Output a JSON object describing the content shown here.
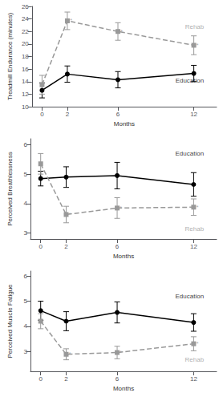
{
  "chart_data": [
    {
      "type": "line",
      "xlabel": "Months",
      "ylabel": "Treadmill Endurance (minutes)",
      "x": [
        0,
        2,
        6,
        12
      ],
      "xlim": [
        -0.8,
        13.8
      ],
      "xticks": [
        0,
        2,
        6,
        12
      ],
      "ylim": [
        10,
        26
      ],
      "yticks": [
        10,
        12,
        14,
        16,
        18,
        20,
        22,
        24,
        26
      ],
      "grid": false,
      "series": [
        {
          "name": "Education",
          "color": "#000000",
          "marker": "circle",
          "line_style": "solid",
          "values": [
            12.6,
            15.2,
            14.3,
            15.3
          ],
          "errors": [
            1.2,
            1.3,
            1.3,
            1.3
          ]
        },
        {
          "name": "Rehab",
          "color": "#999999",
          "marker": "square",
          "line_style": "dashed",
          "values": [
            13.5,
            23.7,
            22.0,
            19.8
          ],
          "errors": [
            1.5,
            1.4,
            1.4,
            1.5
          ]
        }
      ],
      "annotations": [
        {
          "text": "*",
          "x": 2,
          "y": 23.7,
          "color": "#999999",
          "align": "left"
        },
        {
          "text": "*",
          "x": 6,
          "y": 22.0,
          "color": "#999999",
          "align": "left"
        },
        {
          "text": "*",
          "x": 12,
          "y": 19.8,
          "color": "#999999",
          "align": "left"
        },
        {
          "text": "Education",
          "x": 12.8,
          "y": 14.2,
          "color": "#000000",
          "align": "right"
        },
        {
          "text": "Rehab",
          "x": 12.8,
          "y": 22.8,
          "color": "#999999",
          "align": "right"
        }
      ]
    },
    {
      "type": "line",
      "xlabel": "Months",
      "ylabel": "Perceived Breathlessness",
      "x": [
        0,
        2,
        6,
        12
      ],
      "xlim": [
        -0.8,
        13.8
      ],
      "xticks": [
        0,
        2,
        6,
        12
      ],
      "ylim": [
        2.8,
        6.2
      ],
      "yticks": [
        3,
        4,
        5,
        6
      ],
      "grid": false,
      "series": [
        {
          "name": "Education",
          "color": "#000000",
          "marker": "circle",
          "line_style": "solid",
          "values": [
            4.85,
            4.9,
            4.95,
            4.65
          ],
          "errors": [
            0.25,
            0.35,
            0.45,
            0.4
          ]
        },
        {
          "name": "Rehab",
          "color": "#999999",
          "marker": "square",
          "line_style": "dashed",
          "values": [
            5.35,
            3.63,
            3.85,
            3.88
          ],
          "errors": [
            0.35,
            0.28,
            0.35,
            0.28
          ]
        }
      ],
      "annotations": [
        {
          "text": "*",
          "x": 2,
          "y": 3.63,
          "color": "#999999",
          "align": "left"
        },
        {
          "text": "*",
          "x": 6,
          "y": 3.85,
          "color": "#999999",
          "align": "left"
        },
        {
          "text": "*",
          "x": 12,
          "y": 3.88,
          "color": "#999999",
          "align": "left"
        },
        {
          "text": "Education",
          "x": 12.8,
          "y": 5.7,
          "color": "#000000",
          "align": "right"
        },
        {
          "text": "Rehab",
          "x": 12.8,
          "y": 3.15,
          "color": "#999999",
          "align": "right"
        }
      ]
    },
    {
      "type": "line",
      "xlabel": "Months",
      "ylabel": "Perceived Muscle Fatigue",
      "x": [
        0,
        2,
        6,
        12
      ],
      "xlim": [
        -0.8,
        13.8
      ],
      "xticks": [
        0,
        2,
        6,
        12
      ],
      "ylim": [
        2.2,
        6.2
      ],
      "yticks": [
        3,
        4,
        5,
        6
      ],
      "grid": false,
      "series": [
        {
          "name": "Education",
          "color": "#000000",
          "marker": "circle",
          "line_style": "solid",
          "values": [
            4.62,
            4.2,
            4.55,
            4.15
          ],
          "errors": [
            0.38,
            0.38,
            0.42,
            0.35
          ]
        },
        {
          "name": "Rehab",
          "color": "#999999",
          "marker": "square",
          "line_style": "dashed",
          "values": [
            4.2,
            2.88,
            2.95,
            3.3
          ],
          "errors": [
            0.3,
            0.22,
            0.25,
            0.28
          ]
        }
      ],
      "annotations": [
        {
          "text": "*",
          "x": 2,
          "y": 2.88,
          "color": "#999999",
          "align": "left"
        },
        {
          "text": "*",
          "x": 6,
          "y": 2.95,
          "color": "#999999",
          "align": "left"
        },
        {
          "text": "*",
          "x": 12,
          "y": 3.3,
          "color": "#999999",
          "align": "left"
        },
        {
          "text": "Education",
          "x": 12.8,
          "y": 5.2,
          "color": "#000000",
          "align": "right"
        },
        {
          "text": "Rehab",
          "x": 12.8,
          "y": 2.65,
          "color": "#999999",
          "align": "right"
        }
      ]
    }
  ]
}
